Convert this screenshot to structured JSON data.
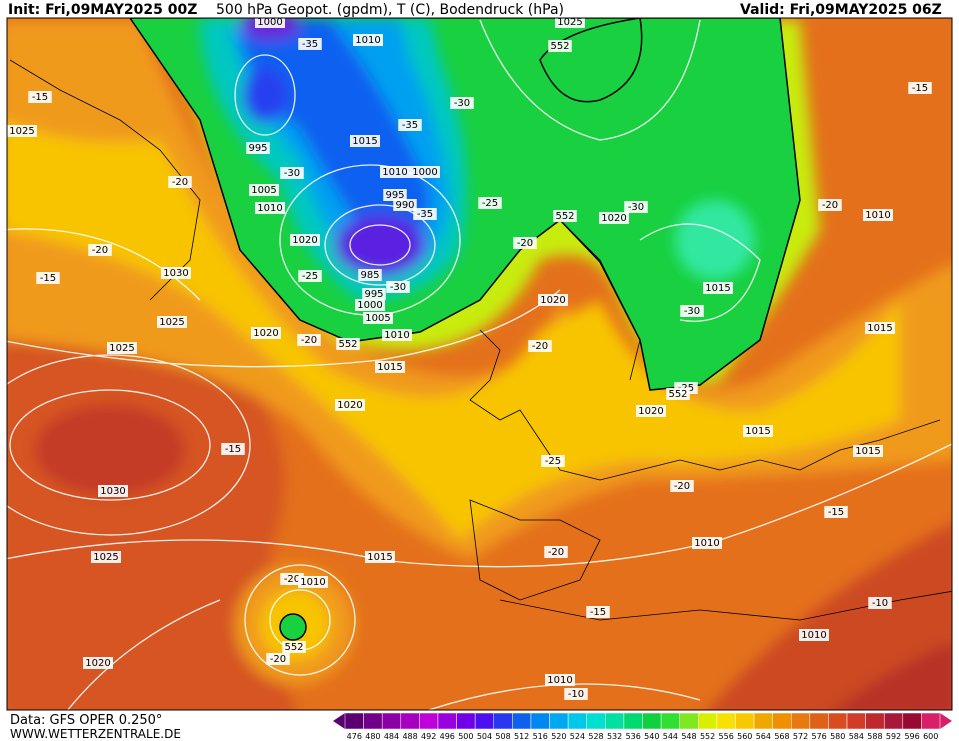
{
  "header": {
    "init": "Init: Fri,09MAY2025 00Z",
    "title": "500 hPa Geopot. (gpdm), T (C), Bodendruck (hPa)",
    "valid": "Valid: Fri,09MAY2025 06Z"
  },
  "footer": {
    "data": "Data: GFS OPER 0.250°",
    "site": "WWW.WETTERZENTRALE.DE"
  },
  "map_labels": [
    "1000",
    "-35",
    "1010",
    "1025",
    "552",
    "-15",
    "1025",
    "-30",
    "-35",
    "995",
    "1015",
    "1010",
    "1000",
    "-30",
    "-20",
    "1005",
    "995",
    "990",
    "1010",
    "-25",
    "-35",
    "552",
    "1020",
    "-30",
    "-20",
    "1010",
    "-15",
    "-20",
    "1020",
    "-20",
    "-15",
    "1030",
    "-25",
    "985",
    "-30",
    "995",
    "1000",
    "1005",
    "1025",
    "1020",
    "-20",
    "552",
    "1010",
    "1015",
    "-30",
    "1020",
    "1015",
    "1025",
    "1015",
    "-20",
    "-25",
    "552",
    "1020",
    "1020",
    "1015",
    "-15",
    "1015",
    "-25",
    "1030",
    "-20",
    "-15",
    "-20",
    "1010",
    "1025",
    "1015",
    "-20",
    "1010",
    "-15",
    "-10",
    "1010",
    "552",
    "-20",
    "1020",
    "1010",
    "-10"
  ],
  "colorbar": {
    "values": [
      476,
      480,
      484,
      488,
      492,
      496,
      500,
      504,
      508,
      512,
      516,
      520,
      524,
      528,
      532,
      536,
      540,
      544,
      548,
      552,
      556,
      560,
      564,
      568,
      572,
      576,
      580,
      584,
      588,
      592,
      596,
      600
    ],
    "colors": [
      "#5a0070",
      "#70008a",
      "#8a00a6",
      "#a800c0",
      "#c000d8",
      "#9a00e0",
      "#7000e8",
      "#4c10f0",
      "#2838f0",
      "#1060f0",
      "#0088f0",
      "#00a8f0",
      "#00c8e8",
      "#00e0d0",
      "#00e0a0",
      "#00d870",
      "#10d040",
      "#30e030",
      "#80e820",
      "#d8f000",
      "#f8e000",
      "#f8c800",
      "#f0a800",
      "#f09000",
      "#e87810",
      "#e06018",
      "#d84c20",
      "#d03c28",
      "#c02830",
      "#a81838",
      "#980830",
      "#d8206a"
    ]
  }
}
